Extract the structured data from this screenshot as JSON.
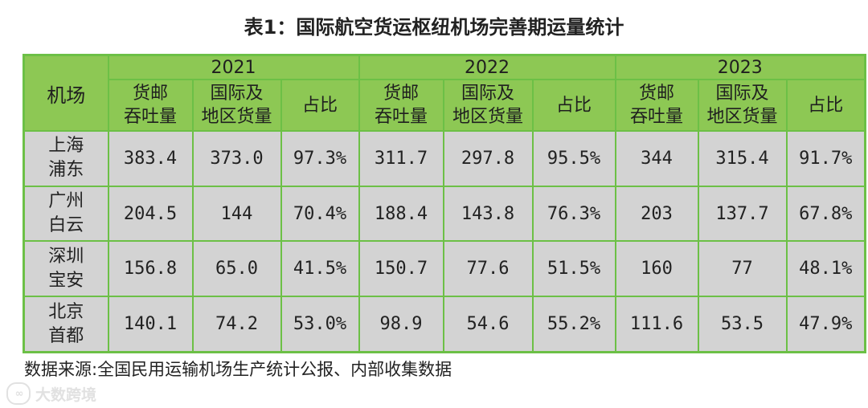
{
  "title": "表1：国际航空货运枢纽机场完善期运量统计",
  "header": {
    "airport_label": "机场",
    "years": [
      "2021",
      "2022",
      "2023"
    ],
    "sub": {
      "cargo_mail": [
        "货邮",
        "吞吐量"
      ],
      "intl_cargo": [
        "国际及",
        "地区货量"
      ],
      "share": "占比"
    }
  },
  "rows": [
    {
      "airport": [
        "上海",
        "浦东"
      ],
      "values": [
        "383.4",
        "373.0",
        "97.3%",
        "311.7",
        "297.8",
        "95.5%",
        "344",
        "315.4",
        "91.7%"
      ]
    },
    {
      "airport": [
        "广州",
        "白云"
      ],
      "values": [
        "204.5",
        "144",
        "70.4%",
        "188.4",
        "143.8",
        "76.3%",
        "203",
        "137.7",
        "67.8%"
      ]
    },
    {
      "airport": [
        "深圳",
        "宝安"
      ],
      "values": [
        "156.8",
        "65.0",
        "41.5%",
        "150.7",
        "77.6",
        "51.5%",
        "160",
        "77",
        "48.1%"
      ]
    },
    {
      "airport": [
        "北京",
        "首都"
      ],
      "values": [
        "140.1",
        "74.2",
        "53.0%",
        "98.9",
        "54.6",
        "55.2%",
        "111.6",
        "53.5",
        "47.9%"
      ]
    }
  ],
  "source": "数据来源:全国民用运输机场生产统计公报、内部收集数据",
  "watermark": {
    "logo": "∞",
    "text": "大数跨境"
  }
}
